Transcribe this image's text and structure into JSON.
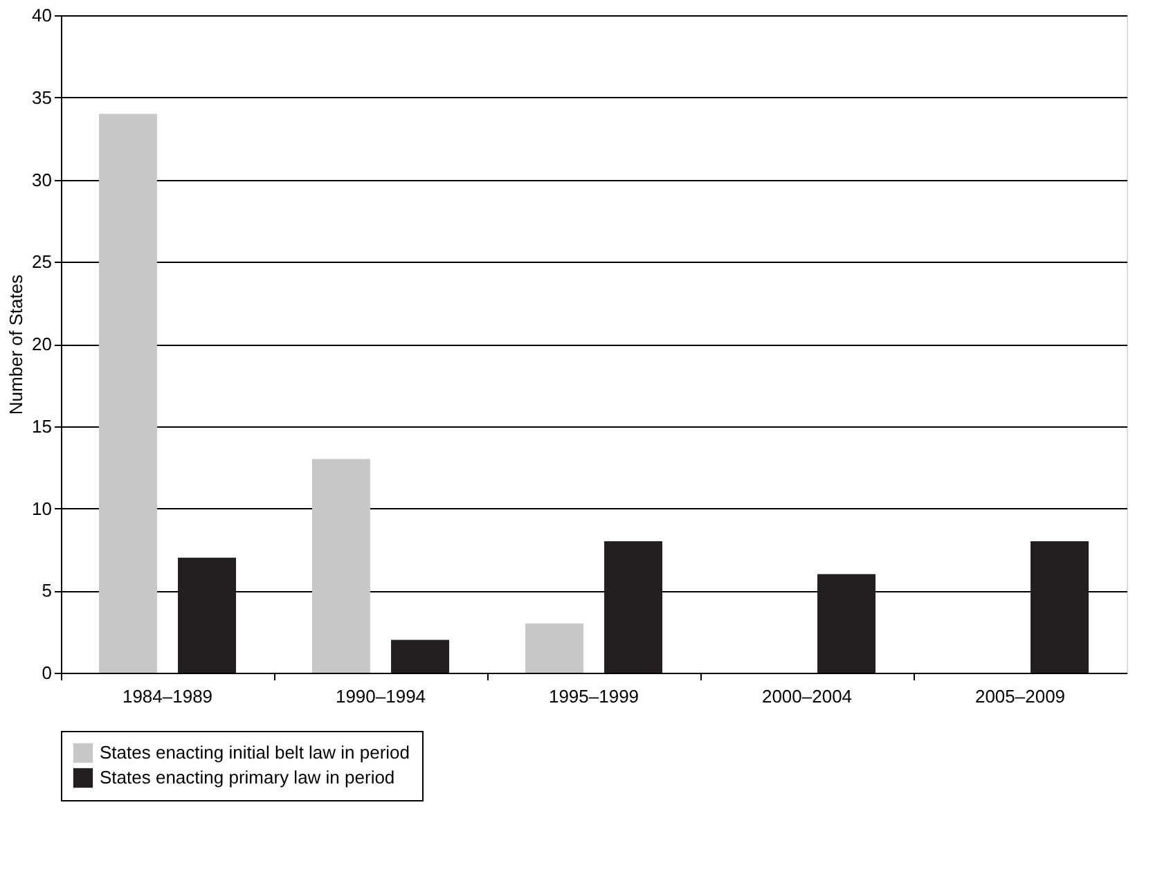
{
  "chart_data": {
    "type": "bar",
    "ylabel": "Number of States",
    "categories": [
      "1984–1989",
      "1990–1994",
      "1995–1999",
      "2000–2004",
      "2005–2009"
    ],
    "series": [
      {
        "name": "States enacting initial belt law in period",
        "color": "#c8c8c8",
        "values": [
          34,
          13,
          3,
          0,
          0
        ]
      },
      {
        "name": "States enacting primary law in period",
        "color": "#231f20",
        "values": [
          7,
          2,
          8,
          6,
          8
        ]
      }
    ],
    "ylim": [
      0,
      40
    ],
    "yticks": [
      0,
      5,
      10,
      15,
      20,
      25,
      30,
      35,
      40
    ],
    "grid": "y",
    "legend": "bottom"
  }
}
